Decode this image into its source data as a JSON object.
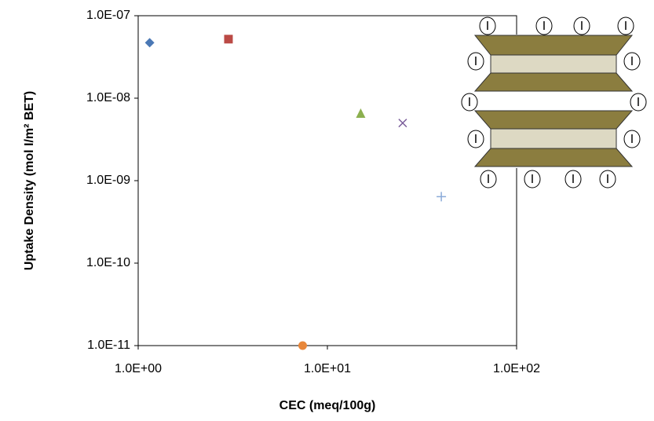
{
  "chart_data": {
    "type": "scatter",
    "xlabel": "CEC (meq/100g)",
    "ylabel": "Uptake Density (mol I/m² BET)",
    "log_x": true,
    "log_y": true,
    "xlim": [
      1,
      100
    ],
    "xticks": [
      {
        "value": 1,
        "label": "1.0E+00"
      },
      {
        "value": 10,
        "label": "1.0E+01"
      },
      {
        "value": 100,
        "label": "1.0E+02"
      }
    ],
    "ylim": [
      1e-11,
      1e-07
    ],
    "yticks": [
      {
        "value": 1e-11,
        "label": "1.0E-11"
      },
      {
        "value": 1e-10,
        "label": "1.0E-10"
      },
      {
        "value": 1e-09,
        "label": "1.0E-09"
      },
      {
        "value": 1e-08,
        "label": "1.0E-08"
      },
      {
        "value": 1e-07,
        "label": "1.0E-07"
      }
    ],
    "series": [
      {
        "color": "#4a78b5",
        "marker": "diamond",
        "x": [
          1.15
        ],
        "values": [
          4.7e-08
        ]
      },
      {
        "color": "#bb4a45",
        "marker": "square",
        "x": [
          3
        ],
        "values": [
          5.2e-08
        ]
      },
      {
        "color": "#8cb04f",
        "marker": "triangle",
        "x": [
          15
        ],
        "values": [
          6.6e-09
        ]
      },
      {
        "color": "#7a5d9a",
        "marker": "x",
        "x": [
          25
        ],
        "values": [
          5e-09
        ]
      },
      {
        "color": "#8aaad8",
        "marker": "plus",
        "x": [
          40
        ],
        "values": [
          6.4e-10
        ]
      },
      {
        "color": "#e8873a",
        "marker": "circle",
        "x": [
          7.4
        ],
        "values": [
          1e-11
        ]
      }
    ]
  },
  "diagram": {
    "ion_label": "I"
  }
}
